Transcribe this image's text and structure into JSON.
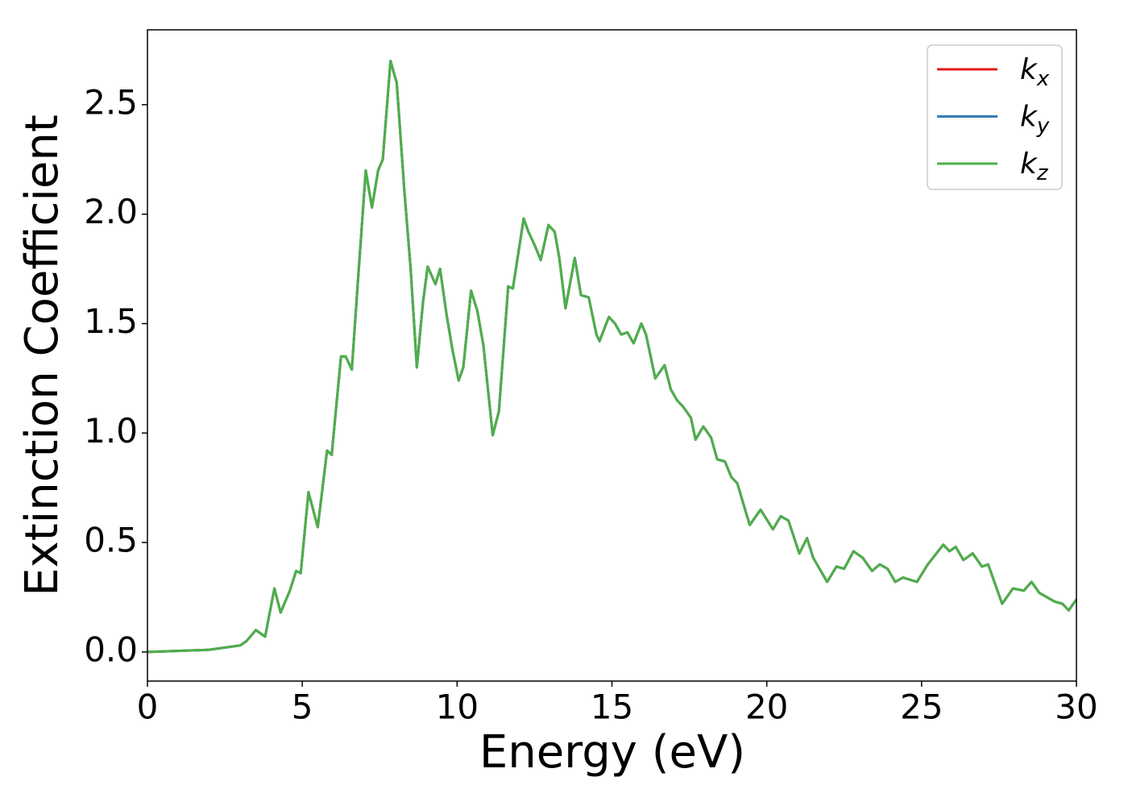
{
  "chart_data": {
    "type": "line",
    "xlabel": "Energy (eV)",
    "ylabel": "Extinction Coefficient",
    "x": [
      0,
      2,
      3,
      3.2,
      3.5,
      3.8,
      4.1,
      4.3,
      4.6,
      4.8,
      4.95,
      5.2,
      5.5,
      5.8,
      5.95,
      6.25,
      6.4,
      6.6,
      6.8,
      7.05,
      7.25,
      7.45,
      7.6,
      7.85,
      8.05,
      8.3,
      8.5,
      8.7,
      8.9,
      9.05,
      9.3,
      9.45,
      9.65,
      9.85,
      10.05,
      10.2,
      10.45,
      10.65,
      10.85,
      11.15,
      11.35,
      11.65,
      11.8,
      12.15,
      12.3,
      12.5,
      12.7,
      12.95,
      13.15,
      13.3,
      13.5,
      13.8,
      14.0,
      14.25,
      14.5,
      14.6,
      14.9,
      15.1,
      15.3,
      15.5,
      15.7,
      15.95,
      16.1,
      16.4,
      16.7,
      16.9,
      17.1,
      17.3,
      17.55,
      17.7,
      17.95,
      18.2,
      18.4,
      18.65,
      18.85,
      19.05,
      19.3,
      19.45,
      19.8,
      20.2,
      20.45,
      20.7,
      21.05,
      21.3,
      21.5,
      21.95,
      22.25,
      22.5,
      22.8,
      23.1,
      23.4,
      23.65,
      23.9,
      24.15,
      24.4,
      24.85,
      25.2,
      25.7,
      25.9,
      26.1,
      26.35,
      26.65,
      26.95,
      27.15,
      27.6,
      27.95,
      28.3,
      28.55,
      28.8,
      29.3,
      29.55,
      29.75,
      30
    ],
    "series": [
      {
        "name": "kx",
        "color": "#e41a1c",
        "values": [
          0,
          0.01,
          0.03,
          0.05,
          0.1,
          0.07,
          0.29,
          0.18,
          0.28,
          0.37,
          0.36,
          0.73,
          0.57,
          0.92,
          0.9,
          1.35,
          1.35,
          1.29,
          1.7,
          2.2,
          2.03,
          2.2,
          2.25,
          2.7,
          2.6,
          2.1,
          1.75,
          1.3,
          1.6,
          1.76,
          1.68,
          1.75,
          1.55,
          1.38,
          1.24,
          1.3,
          1.65,
          1.56,
          1.4,
          0.99,
          1.1,
          1.67,
          1.66,
          1.98,
          1.92,
          1.86,
          1.79,
          1.95,
          1.92,
          1.8,
          1.57,
          1.8,
          1.63,
          1.62,
          1.45,
          1.42,
          1.53,
          1.5,
          1.45,
          1.46,
          1.41,
          1.5,
          1.45,
          1.25,
          1.31,
          1.2,
          1.15,
          1.12,
          1.07,
          0.97,
          1.03,
          0.98,
          0.88,
          0.87,
          0.8,
          0.77,
          0.65,
          0.58,
          0.65,
          0.56,
          0.62,
          0.6,
          0.45,
          0.52,
          0.43,
          0.32,
          0.39,
          0.38,
          0.46,
          0.43,
          0.37,
          0.4,
          0.38,
          0.32,
          0.34,
          0.32,
          0.4,
          0.49,
          0.46,
          0.48,
          0.42,
          0.45,
          0.39,
          0.4,
          0.22,
          0.29,
          0.28,
          0.32,
          0.27,
          0.23,
          0.22,
          0.19,
          0.24
        ]
      },
      {
        "name": "ky",
        "color": "#377eb8",
        "values": [
          0,
          0.01,
          0.03,
          0.05,
          0.1,
          0.07,
          0.29,
          0.18,
          0.28,
          0.37,
          0.36,
          0.73,
          0.57,
          0.92,
          0.9,
          1.35,
          1.35,
          1.29,
          1.7,
          2.2,
          2.03,
          2.2,
          2.25,
          2.7,
          2.6,
          2.1,
          1.75,
          1.3,
          1.6,
          1.76,
          1.68,
          1.75,
          1.55,
          1.38,
          1.24,
          1.3,
          1.65,
          1.56,
          1.4,
          0.99,
          1.1,
          1.67,
          1.66,
          1.98,
          1.92,
          1.86,
          1.79,
          1.95,
          1.92,
          1.8,
          1.57,
          1.8,
          1.63,
          1.62,
          1.45,
          1.42,
          1.53,
          1.5,
          1.45,
          1.46,
          1.41,
          1.5,
          1.45,
          1.25,
          1.31,
          1.2,
          1.15,
          1.12,
          1.07,
          0.97,
          1.03,
          0.98,
          0.88,
          0.87,
          0.8,
          0.77,
          0.65,
          0.58,
          0.65,
          0.56,
          0.62,
          0.6,
          0.45,
          0.52,
          0.43,
          0.32,
          0.39,
          0.38,
          0.46,
          0.43,
          0.37,
          0.4,
          0.38,
          0.32,
          0.34,
          0.32,
          0.4,
          0.49,
          0.46,
          0.48,
          0.42,
          0.45,
          0.39,
          0.4,
          0.22,
          0.29,
          0.28,
          0.32,
          0.27,
          0.23,
          0.22,
          0.19,
          0.24
        ]
      },
      {
        "name": "kz",
        "color": "#4daf4a",
        "values": [
          0,
          0.01,
          0.03,
          0.05,
          0.1,
          0.07,
          0.29,
          0.18,
          0.28,
          0.37,
          0.36,
          0.73,
          0.57,
          0.92,
          0.9,
          1.35,
          1.35,
          1.29,
          1.7,
          2.2,
          2.03,
          2.2,
          2.25,
          2.7,
          2.6,
          2.1,
          1.75,
          1.3,
          1.6,
          1.76,
          1.68,
          1.75,
          1.55,
          1.38,
          1.24,
          1.3,
          1.65,
          1.56,
          1.4,
          0.99,
          1.1,
          1.67,
          1.66,
          1.98,
          1.92,
          1.86,
          1.79,
          1.95,
          1.92,
          1.8,
          1.57,
          1.8,
          1.63,
          1.62,
          1.45,
          1.42,
          1.53,
          1.5,
          1.45,
          1.46,
          1.41,
          1.5,
          1.45,
          1.25,
          1.31,
          1.2,
          1.15,
          1.12,
          1.07,
          0.97,
          1.03,
          0.98,
          0.88,
          0.87,
          0.8,
          0.77,
          0.65,
          0.58,
          0.65,
          0.56,
          0.62,
          0.6,
          0.45,
          0.52,
          0.43,
          0.32,
          0.39,
          0.38,
          0.46,
          0.43,
          0.37,
          0.4,
          0.38,
          0.32,
          0.34,
          0.32,
          0.4,
          0.49,
          0.46,
          0.48,
          0.42,
          0.45,
          0.39,
          0.4,
          0.22,
          0.29,
          0.28,
          0.32,
          0.27,
          0.23,
          0.22,
          0.19,
          0.24
        ]
      }
    ],
    "xlim": [
      0,
      30
    ],
    "xticks": [
      0,
      5,
      10,
      15,
      20,
      25,
      30
    ],
    "ylim": [
      -0.133,
      2.842
    ],
    "yticks": [
      {
        "value": 0,
        "label": "0.0"
      },
      {
        "value": 0.5,
        "label": "0.5"
      },
      {
        "value": 1,
        "label": "1.0"
      },
      {
        "value": 1.5,
        "label": "1.5"
      },
      {
        "value": 2,
        "label": "2.0"
      },
      {
        "value": 2.5,
        "label": "2.5"
      }
    ],
    "legend": "upper right",
    "grid": false
  }
}
